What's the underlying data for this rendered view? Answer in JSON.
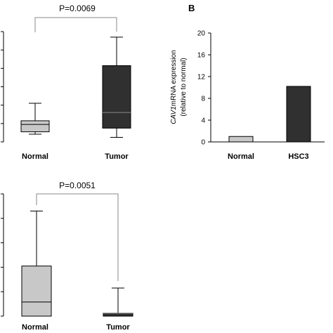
{
  "chart_data": [
    {
      "panel": "",
      "type": "box",
      "categories": [
        "Normal",
        "Tumor"
      ],
      "boxes": [
        {
          "category": "Normal",
          "fill": "#c8c8c8",
          "min": 0.42,
          "q1": 0.55,
          "median": 0.95,
          "q3": 1.15,
          "max": 2.1
        },
        {
          "category": "Tumor",
          "fill": "#303030",
          "min": 0.25,
          "q1": 0.75,
          "median": 1.6,
          "q3": 4.15,
          "max": 5.7
        }
      ],
      "annotation": "P=0.0069",
      "ylim": [
        0,
        6
      ]
    },
    {
      "panel": "B",
      "type": "bar",
      "categories": [
        "Normal",
        "HSC3"
      ],
      "values": [
        1,
        10.2
      ],
      "fills": [
        "#c8c8c8",
        "#303030"
      ],
      "yticks": [
        "0",
        "4",
        "8",
        "12",
        "16",
        "20"
      ],
      "ylim": [
        0,
        20
      ],
      "ylabel_italic": "CAV1",
      "ylabel_rest": "mRNA expression",
      "ylabel_line2": "(relative to normal)"
    },
    {
      "panel": "",
      "type": "box",
      "categories": [
        "Normal",
        "Tumor"
      ],
      "boxes": [
        {
          "category": "Normal",
          "fill": "#c8c8c8",
          "min": 0.0,
          "q1": 0.0,
          "median": 0.58,
          "q3": 2.05,
          "max": 4.3
        },
        {
          "category": "Tumor",
          "fill": "#303030",
          "min": 0.0,
          "q1": 0.0,
          "median": 0.12,
          "q3": 0.12,
          "max": 1.15
        }
      ],
      "annotation": "P=0.0051",
      "ylim": [
        0,
        5
      ]
    }
  ]
}
